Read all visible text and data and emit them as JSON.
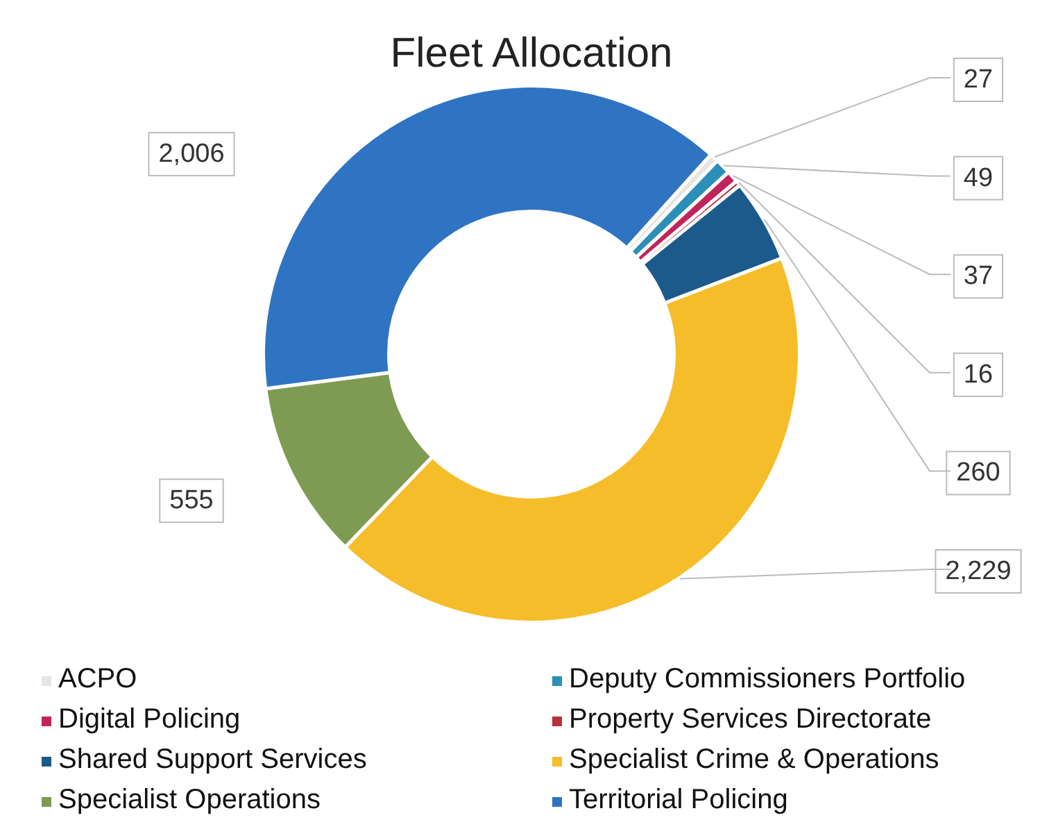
{
  "chart_data": {
    "type": "donut",
    "title": "Fleet Allocation",
    "categories": [
      "ACPO",
      "Deputy Commissioners Portfolio",
      "Digital Policing",
      "Property Services Directorate",
      "Shared Support Services",
      "Specialist Crime & Operations",
      "Specialist Operations",
      "Territorial Policing"
    ],
    "values": [
      27,
      49,
      37,
      16,
      260,
      2229,
      555,
      2006
    ],
    "value_labels": [
      "27",
      "49",
      "37",
      "16",
      "260",
      "2,229",
      "555",
      "2,006"
    ],
    "colors": [
      "#e8e4e0",
      "#2b8fb8",
      "#c0245a",
      "#b5323c",
      "#1b5a8a",
      "#f6bd2a",
      "#7f9b53",
      "#2f74c2"
    ],
    "legend": "bottom"
  }
}
